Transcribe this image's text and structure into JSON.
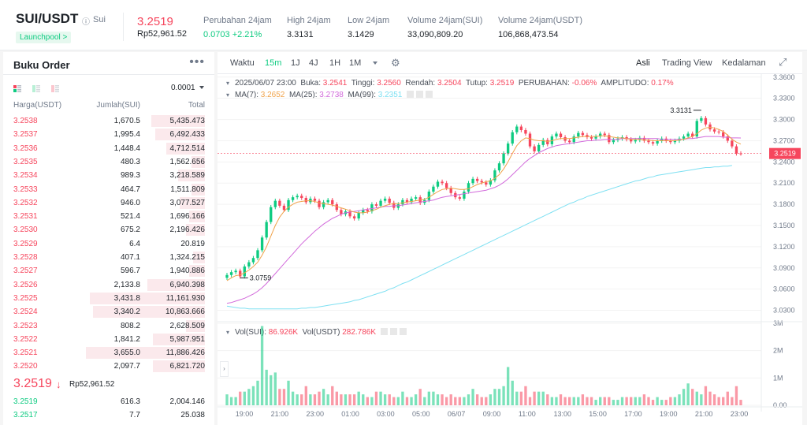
{
  "header": {
    "symbol": "SUI/USDT",
    "subname": "Sui",
    "launchpool": "Launchpool >",
    "price": "3.2519",
    "price_local": "Rp52,961.52",
    "stats": [
      {
        "label": "Perubahan 24jam",
        "value": "0.0703 +2.21%",
        "color": "#0ecb81"
      },
      {
        "label": "High 24jam",
        "value": "3.3131",
        "color": "#1e2329"
      },
      {
        "label": "Low 24jam",
        "value": "3.1429",
        "color": "#1e2329"
      },
      {
        "label": "Volume 24jam(SUI)",
        "value": "33,090,809.20",
        "color": "#1e2329"
      },
      {
        "label": "Volume 24jam(USDT)",
        "value": "106,868,473.54",
        "color": "#1e2329"
      }
    ]
  },
  "orderbook": {
    "title": "Buku Order",
    "more": "•••",
    "tick": "0.0001",
    "columns": [
      "Harga(USDT)",
      "Jumlah(SUI)",
      "Total"
    ],
    "asks": [
      {
        "price": "3.2538",
        "amount": "1,670.5",
        "total": "5,435.473",
        "depth": 0.28
      },
      {
        "price": "3.2537",
        "amount": "1,995.4",
        "total": "6,492.433",
        "depth": 0.26
      },
      {
        "price": "3.2536",
        "amount": "1,448.4",
        "total": "4,712.514",
        "depth": 0.2
      },
      {
        "price": "3.2535",
        "amount": "480.3",
        "total": "1,562.656",
        "depth": 0.07
      },
      {
        "price": "3.2534",
        "amount": "989.3",
        "total": "3,218.589",
        "depth": 0.14
      },
      {
        "price": "3.2533",
        "amount": "464.7",
        "total": "1,511.809",
        "depth": 0.07
      },
      {
        "price": "3.2532",
        "amount": "946.0",
        "total": "3,077.527",
        "depth": 0.13
      },
      {
        "price": "3.2531",
        "amount": "521.4",
        "total": "1,696.166",
        "depth": 0.08
      },
      {
        "price": "3.2530",
        "amount": "675.2",
        "total": "2,196.426",
        "depth": 0.1
      },
      {
        "price": "3.2529",
        "amount": "6.4",
        "total": "20.819",
        "depth": 0
      },
      {
        "price": "3.2528",
        "amount": "407.1",
        "total": "1,324.215",
        "depth": 0.06
      },
      {
        "price": "3.2527",
        "amount": "596.7",
        "total": "1,940.886",
        "depth": 0.08
      },
      {
        "price": "3.2526",
        "amount": "2,133.8",
        "total": "6,940.398",
        "depth": 0.3
      },
      {
        "price": "3.2525",
        "amount": "3,431.8",
        "total": "11,161.930",
        "depth": 0.6
      },
      {
        "price": "3.2524",
        "amount": "3,340.2",
        "total": "10,863.666",
        "depth": 0.58
      },
      {
        "price": "3.2523",
        "amount": "808.2",
        "total": "2,628.509",
        "depth": 0.1
      },
      {
        "price": "3.2522",
        "amount": "1,841.2",
        "total": "5,987.951",
        "depth": 0.27
      },
      {
        "price": "3.2521",
        "amount": "3,655.0",
        "total": "11,886.426",
        "depth": 0.62
      },
      {
        "price": "3.2520",
        "amount": "2,097.7",
        "total": "6,821.720",
        "depth": 0.27
      }
    ],
    "mid_price": "3.2519",
    "mid_arrow": "↓",
    "mid_local": "Rp52,961.52",
    "bids": [
      {
        "price": "3.2519",
        "amount": "616.3",
        "total": "2,004.146"
      },
      {
        "price": "3.2517",
        "amount": "7.7",
        "total": "25.038"
      }
    ]
  },
  "toolbar": {
    "left": [
      "Waktu",
      "15m",
      "1J",
      "4J",
      "1H",
      "1M"
    ],
    "active": "15m",
    "right": [
      "Asli",
      "Trading View",
      "Kedalaman"
    ],
    "right_active": "Asli"
  },
  "info": {
    "date": "2025/06/07 23:00",
    "open_label": "Buka:",
    "open": "3.2541",
    "high_label": "Tinggi:",
    "high": "3.2560",
    "low_label": "Rendah:",
    "low": "3.2504",
    "close_label": "Tutup:",
    "close": "3.2519",
    "change_label": "PERUBAHAN:",
    "change": "-0.06%",
    "amp_label": "AMPLITUDO:",
    "amp": "0.17%",
    "ma7_label": "MA(7):",
    "ma7": "3.2652",
    "ma25_label": "MA(25):",
    "ma25": "3.2738",
    "ma99_label": "MA(99):",
    "ma99": "3.2351",
    "vol_label": "Vol(SUI):",
    "vol": "86.926K",
    "volu_label": "Vol(USDT)",
    "volu": "282.786K"
  },
  "chart_data": {
    "type": "candlestick",
    "price_axis": {
      "ticks": [
        "3.3600",
        "3.3300",
        "3.3000",
        "3.2700",
        "3.2400",
        "3.2100",
        "3.1800",
        "3.1500",
        "3.1200",
        "3.0900",
        "3.0600",
        "3.0300"
      ],
      "range": [
        3.015,
        3.362
      ]
    },
    "volume_axis": {
      "ticks": [
        "3M",
        "2M",
        "1M",
        "0.00"
      ],
      "range": [
        0,
        3000000
      ]
    },
    "x_ticks": [
      "19:00",
      "21:00",
      "23:00",
      "01:00",
      "03:00",
      "05:00",
      "06/07",
      "09:00",
      "11:00",
      "13:00",
      "15:00",
      "17:00",
      "19:00",
      "21:00",
      "23:00"
    ],
    "last_price_label": "3.2519",
    "high_marker": "3.3131",
    "low_marker": "3.0759",
    "close_series": [
      3.08,
      3.084,
      3.086,
      3.078,
      3.092,
      3.098,
      3.104,
      3.115,
      3.133,
      3.155,
      3.176,
      3.185,
      3.178,
      3.172,
      3.186,
      3.19,
      3.192,
      3.189,
      3.183,
      3.188,
      3.185,
      3.176,
      3.183,
      3.186,
      3.18,
      3.172,
      3.166,
      3.17,
      3.163,
      3.16,
      3.168,
      3.172,
      3.17,
      3.18,
      3.178,
      3.185,
      3.188,
      3.182,
      3.175,
      3.18,
      3.186,
      3.183,
      3.188,
      3.19,
      3.182,
      3.186,
      3.198,
      3.205,
      3.212,
      3.21,
      3.203,
      3.196,
      3.19,
      3.188,
      3.198,
      3.21,
      3.216,
      3.213,
      3.211,
      3.208,
      3.214,
      3.228,
      3.238,
      3.252,
      3.266,
      3.282,
      3.29,
      3.285,
      3.28,
      3.262,
      3.255,
      3.264,
      3.271,
      3.265,
      3.276,
      3.28,
      3.275,
      3.27,
      3.268,
      3.276,
      3.281,
      3.278,
      3.275,
      3.273,
      3.276,
      3.28,
      3.278,
      3.268,
      3.271,
      3.273,
      3.275,
      3.272,
      3.269,
      3.271,
      3.274,
      3.27,
      3.268,
      3.266,
      3.27,
      3.273,
      3.27,
      3.268,
      3.27,
      3.273,
      3.276,
      3.28,
      3.276,
      3.298,
      3.302,
      3.293,
      3.286,
      3.283,
      3.282,
      3.276,
      3.27,
      3.262,
      3.252,
      3.2519
    ],
    "volume_series": [
      0.4,
      0.3,
      0.3,
      0.5,
      0.5,
      0.6,
      0.7,
      0.9,
      2.9,
      1.3,
      1.1,
      1.2,
      0.6,
      0.6,
      0.9,
      0.5,
      0.4,
      0.4,
      0.7,
      0.4,
      0.4,
      0.5,
      0.6,
      0.4,
      0.7,
      0.5,
      0.4,
      0.4,
      0.4,
      0.4,
      0.5,
      0.4,
      0.3,
      0.3,
      0.5,
      0.5,
      0.4,
      0.4,
      0.3,
      0.3,
      0.5,
      0.3,
      0.3,
      0.4,
      0.6,
      0.3,
      0.5,
      0.5,
      0.4,
      0.4,
      0.3,
      0.4,
      0.3,
      0.3,
      0.3,
      0.4,
      0.6,
      0.4,
      0.3,
      0.3,
      0.4,
      0.6,
      0.6,
      0.7,
      1.4,
      0.9,
      0.5,
      0.5,
      0.7,
      0.3,
      0.5,
      0.5,
      0.5,
      0.4,
      0.3,
      0.3,
      0.4,
      0.3,
      0.3,
      0.3,
      0.3,
      0.4,
      0.3,
      0.3,
      0.2,
      0.3,
      0.3,
      0.3,
      0.2,
      0.2,
      0.3,
      0.3,
      0.3,
      0.3,
      0.3,
      0.4,
      0.3,
      0.2,
      0.3,
      0.2,
      0.2,
      0.3,
      0.3,
      0.4,
      0.6,
      0.8,
      0.6,
      0.5,
      0.4,
      0.7,
      0.5,
      0.4,
      0.3,
      0.3,
      0.5,
      0.3,
      0.7,
      0.2
    ],
    "ma7_series": [
      3.072,
      3.076,
      3.079,
      3.08,
      3.083,
      3.087,
      3.092,
      3.098,
      3.108,
      3.12,
      3.135,
      3.15,
      3.162,
      3.17,
      3.176,
      3.18,
      3.183,
      3.184,
      3.185,
      3.185,
      3.184,
      3.182,
      3.181,
      3.18,
      3.179,
      3.177,
      3.175,
      3.173,
      3.171,
      3.169,
      3.168,
      3.168,
      3.169,
      3.171,
      3.173,
      3.176,
      3.178,
      3.18,
      3.181,
      3.181,
      3.182,
      3.183,
      3.184,
      3.185,
      3.186,
      3.187,
      3.19,
      3.194,
      3.198,
      3.201,
      3.202,
      3.203,
      3.202,
      3.201,
      3.201,
      3.202,
      3.205,
      3.208,
      3.21,
      3.212,
      3.213,
      3.217,
      3.222,
      3.23,
      3.24,
      3.252,
      3.263,
      3.27,
      3.274,
      3.273,
      3.271,
      3.27,
      3.27,
      3.269,
      3.27,
      3.272,
      3.273,
      3.273,
      3.273,
      3.274,
      3.275,
      3.276,
      3.276,
      3.276,
      3.276,
      3.277,
      3.277,
      3.276,
      3.275,
      3.274,
      3.274,
      3.273,
      3.272,
      3.272,
      3.272,
      3.271,
      3.271,
      3.27,
      3.27,
      3.27,
      3.27,
      3.27,
      3.27,
      3.271,
      3.272,
      3.274,
      3.276,
      3.28,
      3.285,
      3.288,
      3.289,
      3.288,
      3.286,
      3.283,
      3.278,
      3.272,
      3.268,
      3.2652
    ],
    "ma25_series": [
      3.04,
      3.041,
      3.043,
      3.045,
      3.047,
      3.05,
      3.053,
      3.057,
      3.062,
      3.068,
      3.075,
      3.082,
      3.089,
      3.096,
      3.103,
      3.11,
      3.117,
      3.124,
      3.13,
      3.136,
      3.142,
      3.147,
      3.152,
      3.156,
      3.16,
      3.163,
      3.166,
      3.168,
      3.169,
      3.17,
      3.171,
      3.172,
      3.173,
      3.174,
      3.175,
      3.176,
      3.177,
      3.177,
      3.178,
      3.178,
      3.179,
      3.18,
      3.181,
      3.182,
      3.183,
      3.184,
      3.185,
      3.186,
      3.188,
      3.19,
      3.191,
      3.192,
      3.193,
      3.194,
      3.195,
      3.196,
      3.197,
      3.198,
      3.199,
      3.2,
      3.202,
      3.204,
      3.207,
      3.211,
      3.216,
      3.222,
      3.228,
      3.234,
      3.24,
      3.245,
      3.249,
      3.253,
      3.256,
      3.259,
      3.261,
      3.263,
      3.264,
      3.265,
      3.266,
      3.267,
      3.268,
      3.269,
      3.27,
      3.27,
      3.271,
      3.271,
      3.272,
      3.272,
      3.272,
      3.272,
      3.273,
      3.273,
      3.273,
      3.273,
      3.273,
      3.273,
      3.273,
      3.273,
      3.273,
      3.272,
      3.272,
      3.272,
      3.272,
      3.272,
      3.272,
      3.273,
      3.273,
      3.274,
      3.275,
      3.276,
      3.276,
      3.276,
      3.276,
      3.275,
      3.275,
      3.274,
      3.274,
      3.2738
    ],
    "ma99_series": [
      3.036,
      3.035,
      3.034,
      3.033,
      3.033,
      3.032,
      3.032,
      3.032,
      3.032,
      3.032,
      3.032,
      3.032,
      3.032,
      3.032,
      3.032,
      3.032,
      3.032,
      3.033,
      3.033,
      3.034,
      3.034,
      3.035,
      3.036,
      3.037,
      3.038,
      3.039,
      3.04,
      3.041,
      3.042,
      3.044,
      3.045,
      3.047,
      3.049,
      3.051,
      3.053,
      3.055,
      3.057,
      3.06,
      3.062,
      3.065,
      3.068,
      3.07,
      3.073,
      3.076,
      3.079,
      3.082,
      3.085,
      3.088,
      3.091,
      3.094,
      3.097,
      3.1,
      3.103,
      3.106,
      3.109,
      3.112,
      3.115,
      3.118,
      3.121,
      3.124,
      3.127,
      3.13,
      3.133,
      3.136,
      3.139,
      3.142,
      3.145,
      3.148,
      3.151,
      3.154,
      3.157,
      3.16,
      3.163,
      3.166,
      3.169,
      3.172,
      3.175,
      3.178,
      3.181,
      3.183,
      3.186,
      3.188,
      3.191,
      3.193,
      3.195,
      3.197,
      3.199,
      3.201,
      3.203,
      3.205,
      3.207,
      3.209,
      3.211,
      3.213,
      3.214,
      3.216,
      3.218,
      3.219,
      3.221,
      3.222,
      3.223,
      3.224,
      3.225,
      3.226,
      3.227,
      3.228,
      3.229,
      3.23,
      3.231,
      3.232,
      3.232,
      3.233,
      3.233,
      3.234,
      3.234,
      3.2351
    ],
    "colors": {
      "up": "#0ecb81",
      "down": "#f6465d",
      "ma7": "#f0a34b",
      "ma25": "#d26adb",
      "ma99": "#7ee0f2"
    }
  }
}
